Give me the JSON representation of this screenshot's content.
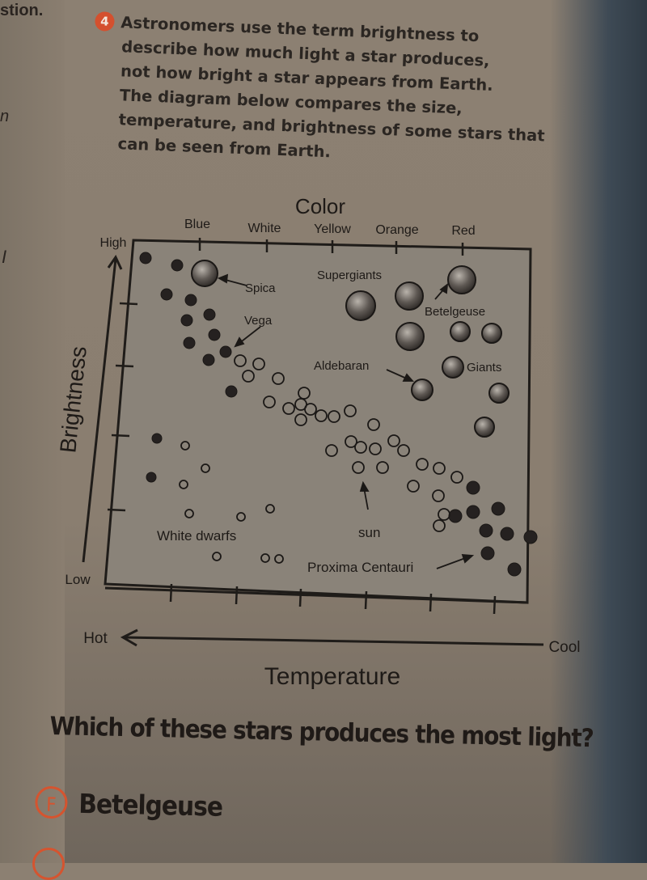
{
  "fragments": {
    "question": "stion.",
    "n": "n",
    "i": "I"
  },
  "intro": {
    "number": "4",
    "lines": [
      "Astronomers use the term brightness to",
      "describe how much light a star produces,",
      "not how bright a star appears from Earth.",
      "The diagram below compares the size,",
      "temperature, and brightness of some stars that",
      "can be seen from Earth."
    ]
  },
  "diagram": {
    "color_title": "Color",
    "colors": [
      "Blue",
      "White",
      "Yellow",
      "Orange",
      "Red"
    ],
    "y_high": "High",
    "y_low": "Low",
    "y_label": "Brightness",
    "x_hot": "Hot",
    "x_cool": "Cool",
    "x_label": "Temperature",
    "labels": {
      "spica": "Spica",
      "vega": "Vega",
      "supergiants": "Supergiants",
      "betelgeuse": "Betelgeuse",
      "aldebaran": "Aldebaran",
      "giants": "Giants",
      "white_dwarfs": "White dwarfs",
      "sun": "sun",
      "proxima": "Proxima Centauri"
    }
  },
  "question": {
    "text": "Which of these stars produces the most light?",
    "answer_letter": "F",
    "answer_text": "Betelgeuse"
  },
  "colors": {
    "accent": "#d5542f",
    "page": "#8a7e70",
    "plot": "#8a8379",
    "ink": "#1f1a17"
  }
}
